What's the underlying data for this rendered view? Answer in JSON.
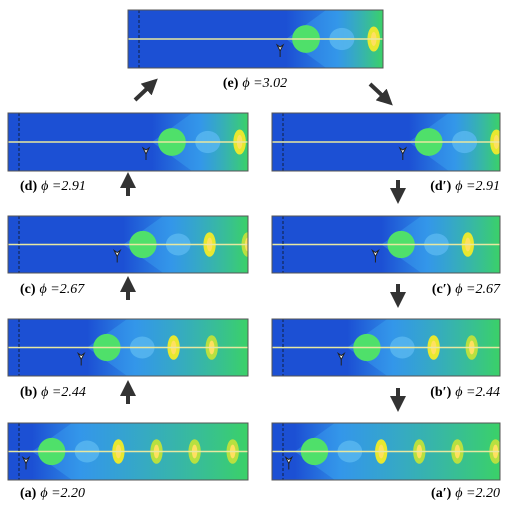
{
  "panels": [
    {
      "letter": "(e)",
      "phi": "ϕ =3.02"
    },
    {
      "letter": "(d)",
      "phi": "ϕ =2.91"
    },
    {
      "letter": "(c)",
      "phi": "ϕ =2.67"
    },
    {
      "letter": "(b)",
      "phi": "ϕ =2.44"
    },
    {
      "letter": "(a)",
      "phi": "ϕ =2.20"
    },
    {
      "letter": "(d′)",
      "phi": "ϕ =2.91"
    },
    {
      "letter": "(c′)",
      "phi": "ϕ =2.67"
    },
    {
      "letter": "(b′)",
      "phi": "ϕ =2.44"
    },
    {
      "letter": "(a′)",
      "phi": "ϕ =2.20"
    }
  ]
}
